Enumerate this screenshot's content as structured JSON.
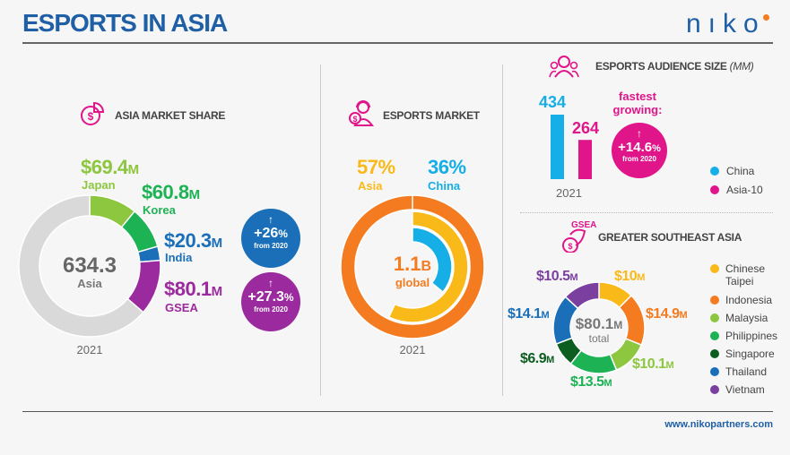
{
  "header": {
    "title": "ESPORTS IN ASIA",
    "logo": "NIKO"
  },
  "footer": {
    "url": "www.nikopartners.com"
  },
  "market_share": {
    "title": "ASIA MARKET SHARE",
    "total": "634.3",
    "total_label": "Asia",
    "year": "2021",
    "segments": [
      {
        "name": "Japan",
        "value": 69.4,
        "label": "$69.4",
        "unit": "M",
        "color": "#8dc63f"
      },
      {
        "name": "Korea",
        "value": 60.8,
        "label": "$60.8",
        "unit": "M",
        "color": "#1db254"
      },
      {
        "name": "India",
        "value": 20.3,
        "label": "$20.3",
        "unit": "M",
        "color": "#1a6fb8"
      },
      {
        "name": "GSEA",
        "value": 80.1,
        "label": "$80.1",
        "unit": "M",
        "color": "#9b2a9e"
      }
    ],
    "rest_color": "#d9d9d9",
    "growth": [
      {
        "arrow": "↑",
        "value": "+26",
        "pct": "%",
        "note": "from 2020",
        "color": "#1a6fb8"
      },
      {
        "arrow": "↑",
        "value": "+27.3",
        "pct": "%",
        "note": "from 2020",
        "color": "#9b2a9e"
      }
    ]
  },
  "esports_market": {
    "title": "ESPORTS MARKET",
    "total": "1.1",
    "total_unit": "B",
    "total_label": "global",
    "year": "2021",
    "rings": [
      {
        "name": "Global",
        "percent": 100,
        "color": "#f47b20"
      },
      {
        "name": "Asia",
        "percent": 57,
        "label": "57%",
        "color": "#f9b919"
      },
      {
        "name": "China",
        "percent": 36,
        "label": "36%",
        "color": "#16aee6"
      }
    ]
  },
  "audience": {
    "title": "ESPORTS AUDIENCE SIZE",
    "title_unit": "(MM)",
    "year": "2021",
    "bars": [
      {
        "name": "China",
        "value": 434,
        "label": "434",
        "color": "#16aee6"
      },
      {
        "name": "Asia-10",
        "value": 264,
        "label": "264",
        "color": "#e0158a"
      }
    ],
    "fastest_label": "fastest growing:",
    "growth": {
      "arrow": "↑",
      "value": "+14.6",
      "pct": "%",
      "note": "from 2020",
      "color": "#e0158a"
    }
  },
  "gsea": {
    "title": "GREATER SOUTHEAST ASIA",
    "icon_text": "GSEA",
    "total": "$80.1",
    "total_unit": "M",
    "total_label": "total",
    "segments": [
      {
        "name": "Chinese Taipei",
        "value": 10,
        "label": "$10",
        "unit": "M",
        "color": "#f9b919"
      },
      {
        "name": "Indonesia",
        "value": 14.9,
        "label": "$14.9",
        "unit": "M",
        "color": "#f47b20"
      },
      {
        "name": "Malaysia",
        "value": 10.1,
        "label": "$10.1",
        "unit": "M",
        "color": "#8dc63f"
      },
      {
        "name": "Philippines",
        "value": 13.5,
        "label": "$13.5",
        "unit": "M",
        "color": "#1db254"
      },
      {
        "name": "Singapore",
        "value": 6.9,
        "label": "$6.9",
        "unit": "M",
        "color": "#0b5e1f"
      },
      {
        "name": "Thailand",
        "value": 14.1,
        "label": "$14.1",
        "unit": "M",
        "color": "#1a6fb8"
      },
      {
        "name": "Vietnam",
        "value": 10.5,
        "label": "$10.5",
        "unit": "M",
        "color": "#7b3fa0"
      }
    ]
  }
}
